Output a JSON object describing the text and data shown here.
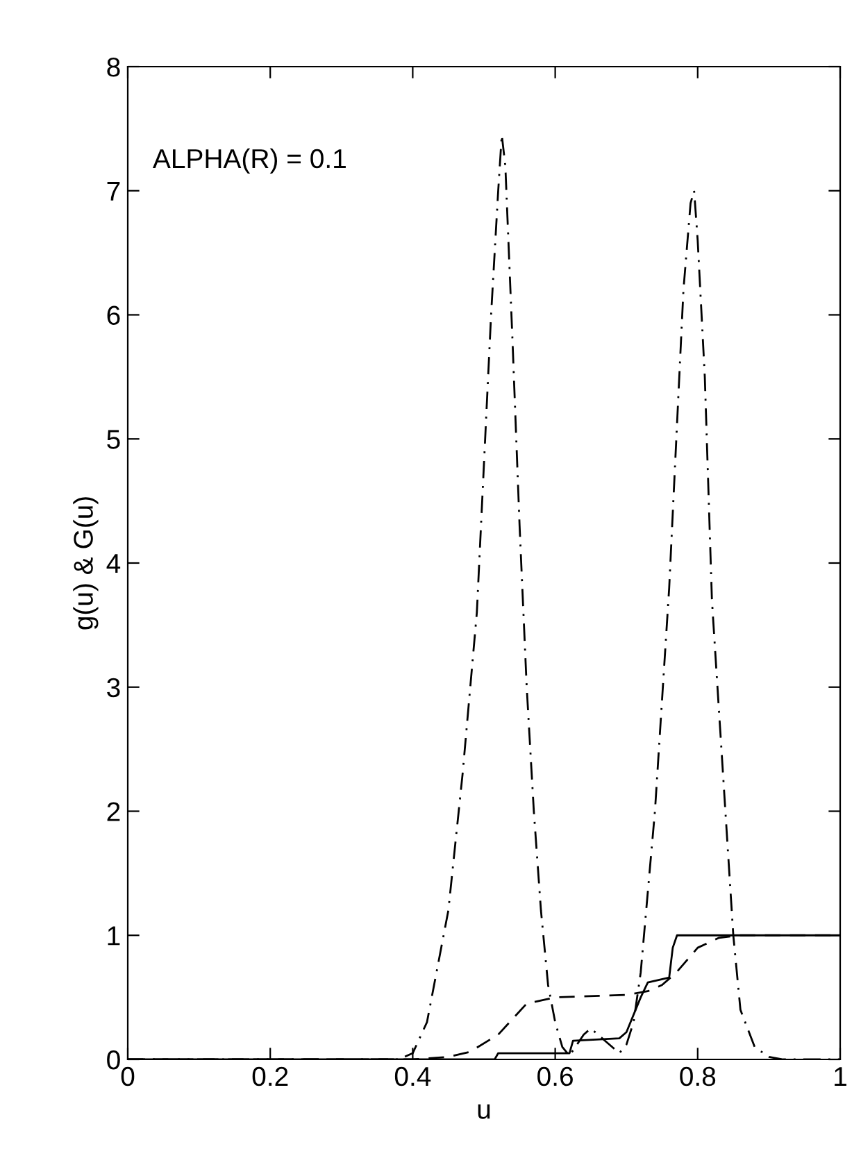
{
  "chart_data": {
    "type": "line",
    "xlabel": "u",
    "ylabel": "g(u) & G(u)",
    "annotations": [
      "ALPHA(R) = 0.1"
    ],
    "xlim": [
      0,
      1
    ],
    "xticks": [
      0,
      {
        "value": 0.2,
        "label": "0.2"
      },
      {
        "value": 0.4,
        "label": "0.4"
      },
      {
        "value": 0.6,
        "label": "0.6"
      },
      {
        "value": 0.8,
        "label": "0.8"
      },
      1
    ],
    "ylim": [
      0,
      8
    ],
    "yticks": [
      0,
      1,
      2,
      3,
      4,
      5,
      6,
      7,
      8
    ],
    "grid": false,
    "legend": false,
    "series": [
      {
        "color": "#000000",
        "line_style": "dashdot",
        "x": [
          0,
          0.3,
          0.38,
          0.4,
          0.42,
          0.45,
          0.47,
          0.49,
          0.5,
          0.51,
          0.52,
          0.525,
          0.53,
          0.54,
          0.55,
          0.56,
          0.57,
          0.58,
          0.59,
          0.6,
          0.61,
          0.62,
          0.64,
          0.65,
          0.67,
          0.69,
          0.7,
          0.71,
          0.72,
          0.74,
          0.76,
          0.77,
          0.78,
          0.79,
          0.795,
          0.8,
          0.81,
          0.82,
          0.83,
          0.84,
          0.85,
          0.86,
          0.88,
          0.9,
          0.92,
          1
        ],
        "values": [
          0,
          0,
          0,
          0.05,
          0.3,
          1.2,
          2.3,
          3.6,
          4.8,
          6.0,
          7.0,
          7.45,
          7.2,
          5.8,
          4.3,
          3.0,
          2.0,
          1.2,
          0.6,
          0.3,
          0.1,
          0.03,
          0.2,
          0.25,
          0.15,
          0.05,
          0.12,
          0.3,
          0.7,
          2.0,
          3.8,
          5.0,
          6.2,
          6.9,
          7.0,
          6.6,
          5.5,
          3.7,
          2.8,
          1.9,
          1.0,
          0.4,
          0.1,
          0.02,
          0,
          0
        ]
      },
      {
        "color": "#000000",
        "line_style": "dashed",
        "x": [
          0,
          0.4,
          0.45,
          0.48,
          0.52,
          0.56,
          0.6,
          0.7,
          0.73,
          0.75,
          0.77,
          0.8,
          0.83,
          0.86,
          1
        ],
        "values": [
          0,
          0,
          0.02,
          0.06,
          0.2,
          0.45,
          0.5,
          0.52,
          0.55,
          0.6,
          0.7,
          0.9,
          0.98,
          1.0,
          1.0
        ]
      },
      {
        "color": "#000000",
        "line_style": "solid",
        "x": [
          0,
          0.515,
          0.52,
          0.62,
          0.625,
          0.69,
          0.7,
          0.72,
          0.73,
          0.76,
          0.765,
          0.771,
          1
        ],
        "values": [
          0,
          0,
          0.05,
          0.05,
          0.15,
          0.17,
          0.22,
          0.5,
          0.62,
          0.66,
          0.9,
          1.0,
          1.0
        ]
      }
    ]
  }
}
